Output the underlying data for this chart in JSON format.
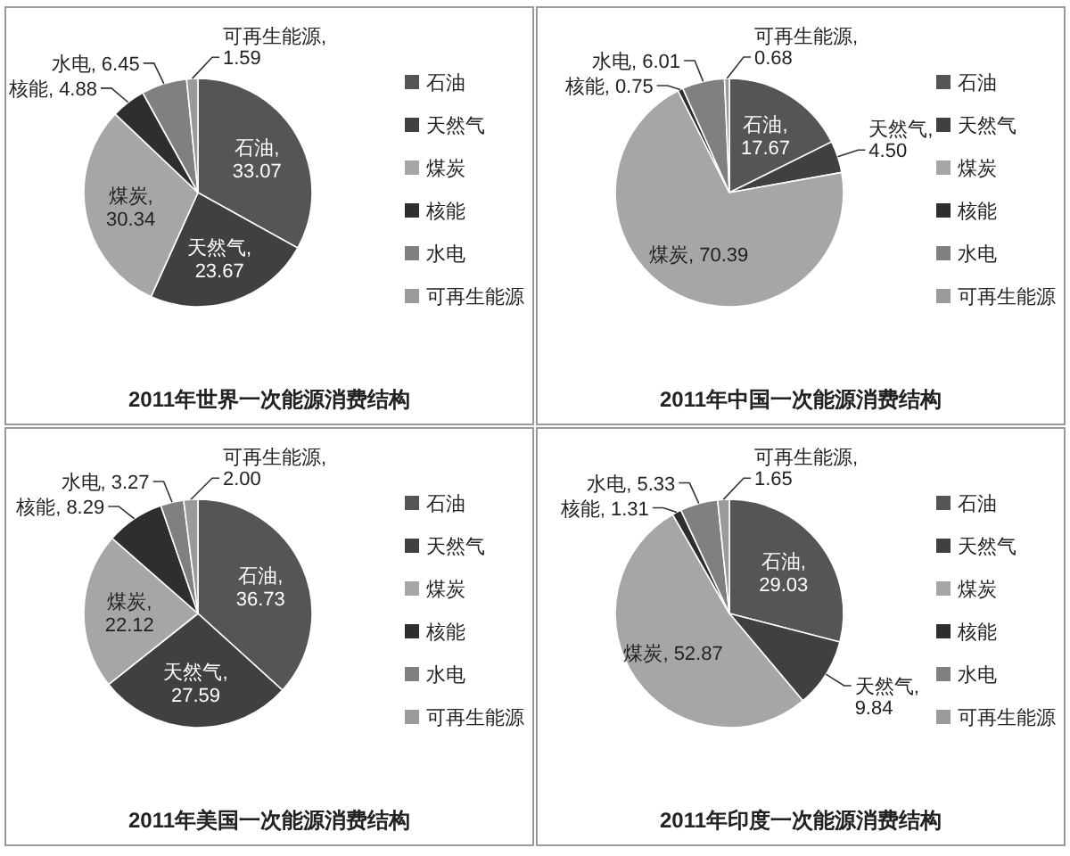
{
  "chart_data": [
    {
      "type": "pie",
      "title": "2011年世界一次能源消费结构",
      "legend": "right",
      "categories": [
        "石油",
        "天然气",
        "煤炭",
        "核能",
        "水电",
        "可再生能源"
      ],
      "values": [
        33.07,
        23.67,
        30.34,
        4.88,
        6.45,
        1.59
      ],
      "value_labels": [
        "石油, 33.07",
        "天然气, 23.67",
        "煤炭, 30.34",
        "核能, 4.88",
        "水电, 6.45",
        "可再生能源, 1.59"
      ],
      "colors": [
        "#555555",
        "#404040",
        "#a6a6a6",
        "#2e2e2e",
        "#808080",
        "#9a9a9a"
      ]
    },
    {
      "type": "pie",
      "title": "2011年中国一次能源消费结构",
      "legend": "right",
      "categories": [
        "石油",
        "天然气",
        "煤炭",
        "核能",
        "水电",
        "可再生能源"
      ],
      "values": [
        17.67,
        4.5,
        70.39,
        0.75,
        6.01,
        0.68
      ],
      "value_labels": [
        "石油, 17.67",
        "天然气, 4.50",
        "煤炭, 70.39",
        "核能, 0.75",
        "水电, 6.01",
        "可再生能源, 0.68"
      ],
      "colors": [
        "#555555",
        "#404040",
        "#a6a6a6",
        "#2e2e2e",
        "#808080",
        "#9a9a9a"
      ]
    },
    {
      "type": "pie",
      "title": "2011年美国一次能源消费结构",
      "legend": "right",
      "categories": [
        "石油",
        "天然气",
        "煤炭",
        "核能",
        "水电",
        "可再生能源"
      ],
      "values": [
        36.73,
        27.59,
        22.12,
        8.29,
        3.27,
        2.0
      ],
      "value_labels": [
        "石油, 36.73",
        "天然气, 27.59",
        "煤炭, 22.12",
        "核能, 8.29",
        "水电, 3.27",
        "可再生能源, 2.00"
      ],
      "colors": [
        "#555555",
        "#404040",
        "#a6a6a6",
        "#2e2e2e",
        "#808080",
        "#9a9a9a"
      ]
    },
    {
      "type": "pie",
      "title": "2011年印度一次能源消费结构",
      "legend": "right",
      "categories": [
        "石油",
        "天然气",
        "煤炭",
        "核能",
        "水电",
        "可再生能源"
      ],
      "values": [
        29.03,
        9.84,
        52.87,
        1.31,
        5.33,
        1.65
      ],
      "value_labels": [
        "石油, 29.03",
        "天然气, 9.84",
        "煤炭, 52.87",
        "核能, 1.31",
        "水电, 5.33",
        "可再生能源, 1.65"
      ],
      "colors": [
        "#555555",
        "#404040",
        "#a6a6a6",
        "#2e2e2e",
        "#808080",
        "#9a9a9a"
      ]
    }
  ]
}
